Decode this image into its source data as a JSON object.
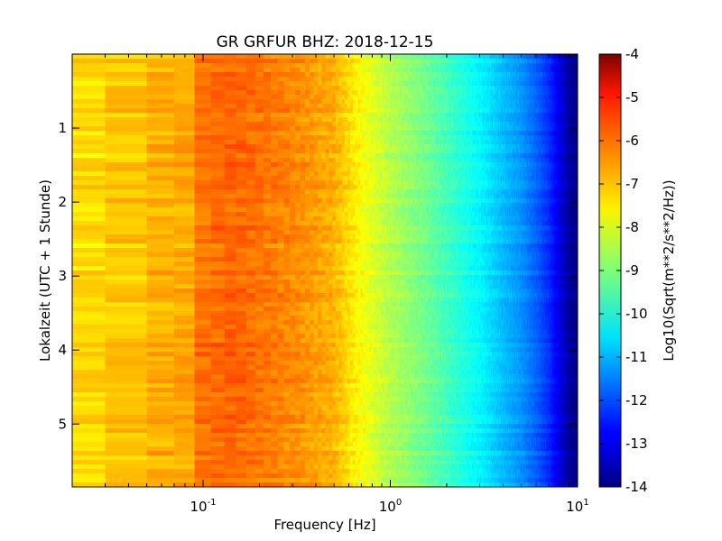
{
  "chart_data": {
    "type": "heatmap",
    "title": "GR GRFUR BHZ: 2018-12-15",
    "xlabel": "Frequency [Hz]",
    "ylabel": "Lokalzeit (UTC + 1 Stunde)",
    "xscale": "log",
    "xlim": [
      0.02,
      10
    ],
    "ylim": [
      5.85,
      0
    ],
    "y_inverted": true,
    "x_ticks": [
      {
        "value": 0.1,
        "base": "10",
        "exp": "-1"
      },
      {
        "value": 1,
        "base": "10",
        "exp": "0"
      },
      {
        "value": 10,
        "base": "10",
        "exp": "1"
      }
    ],
    "y_ticks": [
      "1",
      "2",
      "3",
      "4",
      "5"
    ],
    "colormap": "jet",
    "colorbar": {
      "label": "Log10(Sqrt(m**2/s**2/Hz))",
      "range": [
        -14,
        -4
      ],
      "ticks": [
        "-4",
        "-5",
        "-6",
        "-7",
        "-8",
        "-9",
        "-10",
        "-11",
        "-12",
        "-13",
        "-14"
      ]
    },
    "spectrum_profile": {
      "frequency_hz": [
        0.02,
        0.04,
        0.06,
        0.08,
        0.1,
        0.15,
        0.2,
        0.3,
        0.5,
        0.7,
        1.0,
        1.5,
        2.0,
        3.0,
        4.0,
        5.0,
        6.0,
        7.0,
        8.0,
        9.0,
        10.0
      ],
      "log10_amplitude": [
        -7.4,
        -7.2,
        -7.0,
        -6.9,
        -6.4,
        -6.2,
        -6.4,
        -6.6,
        -7.0,
        -7.8,
        -8.5,
        -9.1,
        -9.6,
        -10.3,
        -10.9,
        -11.3,
        -11.8,
        -12.3,
        -13.0,
        -13.7,
        -14.0
      ]
    }
  }
}
